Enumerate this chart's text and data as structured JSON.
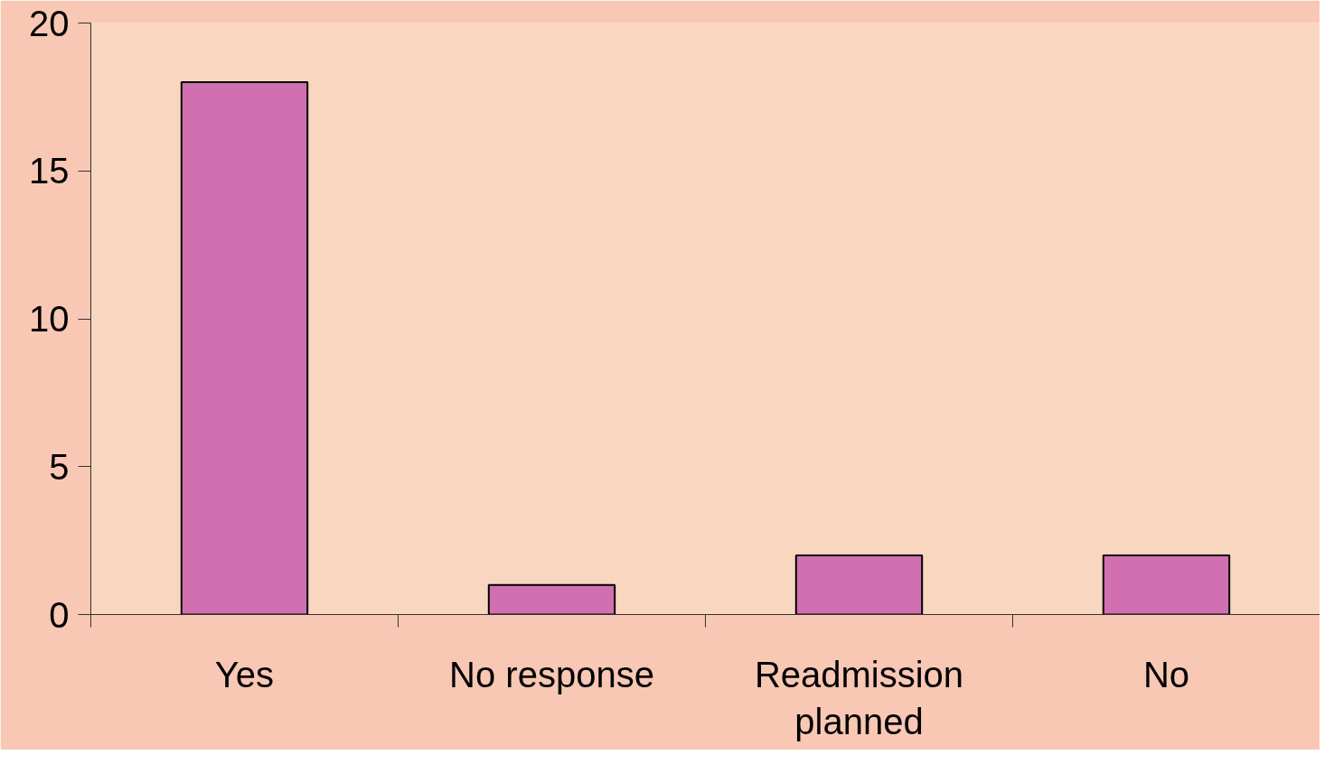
{
  "chart_data": {
    "type": "bar",
    "categories": [
      "Yes",
      "No response",
      "Readmission planned",
      "No"
    ],
    "values": [
      18,
      1,
      2,
      2
    ],
    "color": "#d070b0",
    "ylim": [
      0,
      20
    ],
    "yticks": [
      0,
      5,
      10,
      15,
      20
    ],
    "grid": false
  }
}
